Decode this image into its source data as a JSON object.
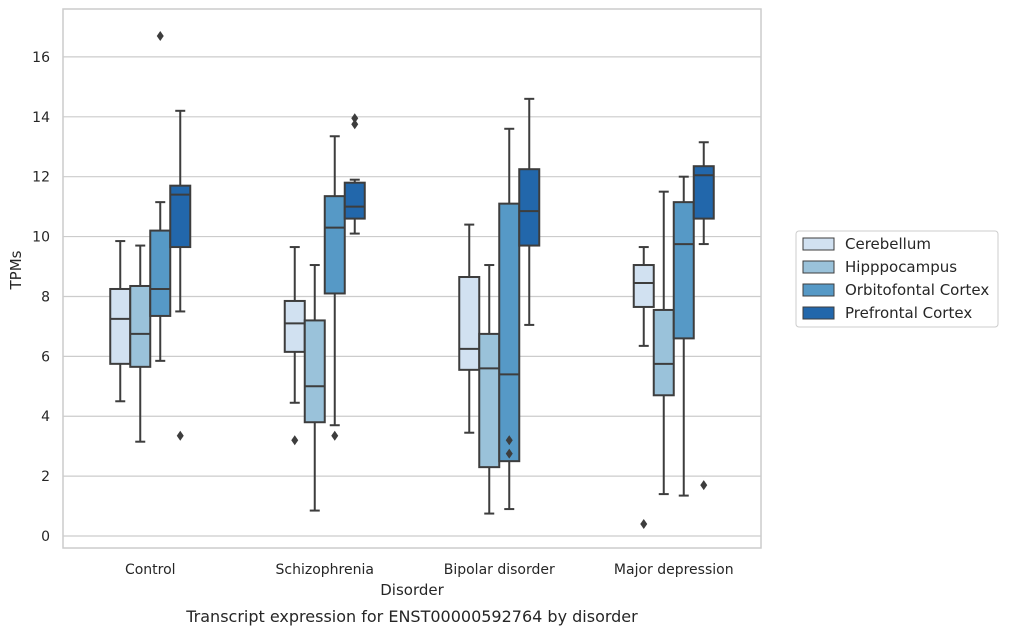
{
  "chart_data": {
    "type": "box",
    "caption": "Transcript expression for ENST00000592764 by disorder",
    "xlabel": "Disorder",
    "ylabel": "TPMs",
    "ylim": [
      -0.4,
      17.6
    ],
    "yticks": [
      0,
      2,
      4,
      6,
      8,
      10,
      12,
      14,
      16
    ],
    "grid": true,
    "legend_position": "right",
    "categories": [
      "Control",
      "Schizophrenia",
      "Bipolar disorder",
      "Major depression"
    ],
    "series": [
      {
        "name": "Cerebellum",
        "color": "#d1e1f1",
        "boxes": [
          {
            "whisker_low": 4.5,
            "q1": 5.75,
            "median": 7.25,
            "q3": 8.25,
            "whisker_high": 9.85,
            "outliers": []
          },
          {
            "whisker_low": 4.45,
            "q1": 6.15,
            "median": 7.1,
            "q3": 7.85,
            "whisker_high": 9.65,
            "outliers": [
              3.2
            ]
          },
          {
            "whisker_low": 3.45,
            "q1": 5.55,
            "median": 6.25,
            "q3": 8.65,
            "whisker_high": 10.4,
            "outliers": []
          },
          {
            "whisker_low": 6.35,
            "q1": 7.65,
            "median": 8.45,
            "q3": 9.05,
            "whisker_high": 9.65,
            "outliers": [
              0.4
            ]
          }
        ]
      },
      {
        "name": "Hipppocampus",
        "color": "#9ac2da",
        "boxes": [
          {
            "whisker_low": 3.15,
            "q1": 5.65,
            "median": 6.75,
            "q3": 8.35,
            "whisker_high": 9.7,
            "outliers": []
          },
          {
            "whisker_low": 0.85,
            "q1": 3.8,
            "median": 5.0,
            "q3": 7.2,
            "whisker_high": 9.05,
            "outliers": []
          },
          {
            "whisker_low": 0.75,
            "q1": 2.3,
            "median": 5.6,
            "q3": 6.75,
            "whisker_high": 9.05,
            "outliers": []
          },
          {
            "whisker_low": 1.4,
            "q1": 4.7,
            "median": 5.75,
            "q3": 7.55,
            "whisker_high": 11.5,
            "outliers": []
          }
        ]
      },
      {
        "name": "Orbitofontal Cortex",
        "color": "#5699c6",
        "boxes": [
          {
            "whisker_low": 5.85,
            "q1": 7.35,
            "median": 8.25,
            "q3": 10.2,
            "whisker_high": 11.15,
            "outliers": [
              16.7
            ]
          },
          {
            "whisker_low": 3.7,
            "q1": 8.1,
            "median": 10.3,
            "q3": 11.35,
            "whisker_high": 13.35,
            "outliers": [
              3.35
            ]
          },
          {
            "whisker_low": 0.9,
            "q1": 2.5,
            "median": 5.4,
            "q3": 11.1,
            "whisker_high": 13.6,
            "outliers": [
              3.2,
              2.75
            ]
          },
          {
            "whisker_low": 1.35,
            "q1": 6.6,
            "median": 9.75,
            "q3": 11.15,
            "whisker_high": 12.0,
            "outliers": []
          }
        ]
      },
      {
        "name": "Prefrontal Cortex",
        "color": "#2267ab",
        "boxes": [
          {
            "whisker_low": 7.5,
            "q1": 9.65,
            "median": 11.4,
            "q3": 11.7,
            "whisker_high": 14.2,
            "outliers": [
              3.35
            ]
          },
          {
            "whisker_low": 10.1,
            "q1": 10.6,
            "median": 11.0,
            "q3": 11.8,
            "whisker_high": 11.9,
            "outliers": [
              13.95,
              13.75
            ]
          },
          {
            "whisker_low": 7.05,
            "q1": 9.7,
            "median": 10.85,
            "q3": 12.25,
            "whisker_high": 14.6,
            "outliers": []
          },
          {
            "whisker_low": 9.75,
            "q1": 10.6,
            "median": 12.05,
            "q3": 12.35,
            "whisker_high": 13.15,
            "outliers": [
              1.7
            ]
          }
        ]
      }
    ]
  }
}
